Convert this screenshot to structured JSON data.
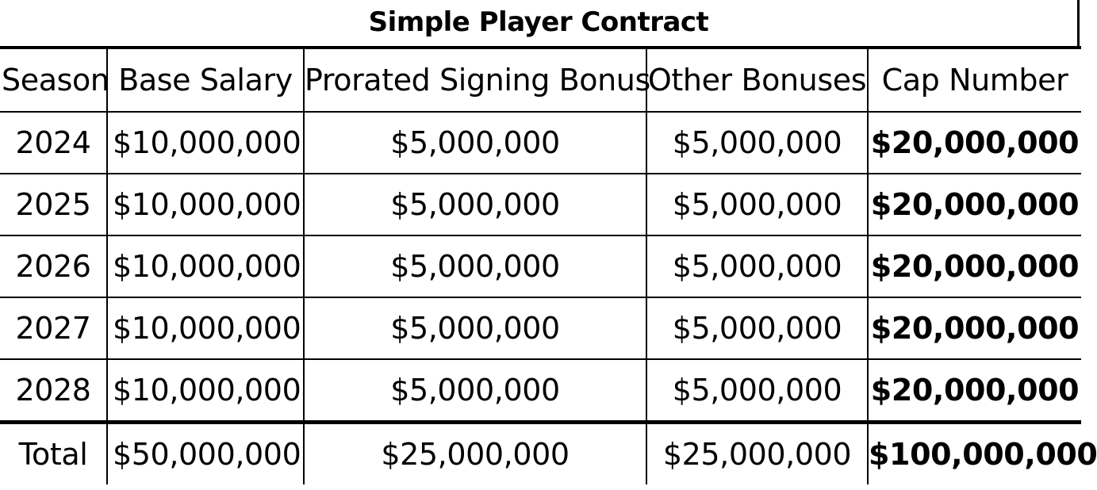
{
  "title": "Simple Player Contract",
  "headers": {
    "season": "Season",
    "base_salary": "Base Salary",
    "prorated_signing_bonus": "Prorated Signing Bonus",
    "other_bonuses": "Other Bonuses",
    "cap_number": "Cap Number"
  },
  "rows": [
    {
      "season": "2024",
      "base_salary": "$10,000,000",
      "prorated_signing_bonus": "$5,000,000",
      "other_bonuses": "$5,000,000",
      "cap_number": "$20,000,000"
    },
    {
      "season": "2025",
      "base_salary": "$10,000,000",
      "prorated_signing_bonus": "$5,000,000",
      "other_bonuses": "$5,000,000",
      "cap_number": "$20,000,000"
    },
    {
      "season": "2026",
      "base_salary": "$10,000,000",
      "prorated_signing_bonus": "$5,000,000",
      "other_bonuses": "$5,000,000",
      "cap_number": "$20,000,000"
    },
    {
      "season": "2027",
      "base_salary": "$10,000,000",
      "prorated_signing_bonus": "$5,000,000",
      "other_bonuses": "$5,000,000",
      "cap_number": "$20,000,000"
    },
    {
      "season": "2028",
      "base_salary": "$10,000,000",
      "prorated_signing_bonus": "$5,000,000",
      "other_bonuses": "$5,000,000",
      "cap_number": "$20,000,000"
    }
  ],
  "total": {
    "label": "Total",
    "base_salary": "$50,000,000",
    "prorated_signing_bonus": "$25,000,000",
    "other_bonuses": "$25,000,000",
    "cap_number": "$100,000,000"
  }
}
